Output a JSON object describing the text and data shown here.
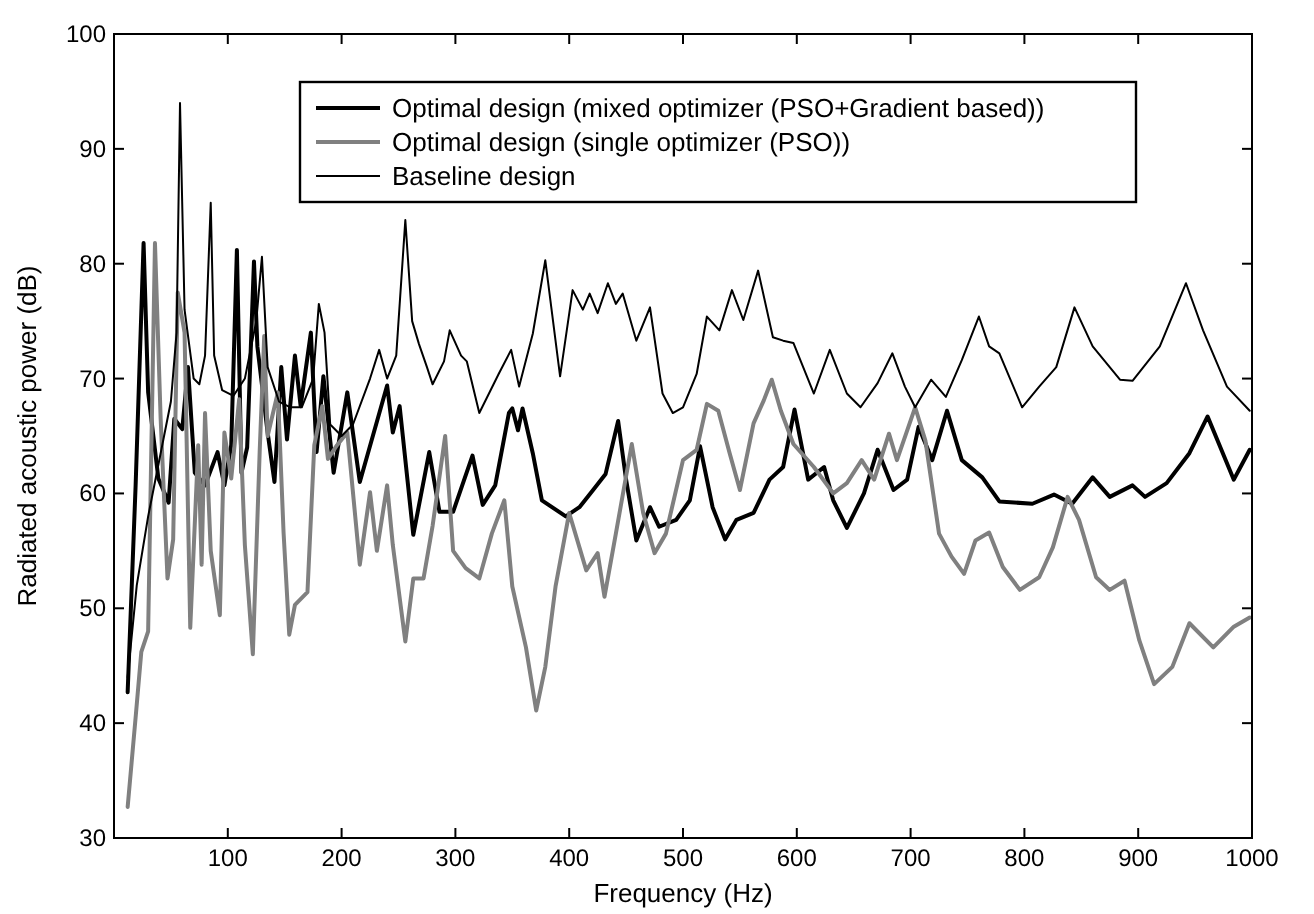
{
  "chart_data": {
    "type": "line",
    "xlabel": "Frequency (Hz)",
    "ylabel": "Radiated acoustic power (dB)",
    "xlim": [
      0,
      1000
    ],
    "ylim": [
      30,
      100
    ],
    "xticks": [
      100,
      200,
      300,
      400,
      500,
      600,
      700,
      800,
      900,
      1000
    ],
    "yticks": [
      30,
      40,
      50,
      60,
      70,
      80,
      90,
      100
    ],
    "grid": false,
    "legend": "top",
    "marker": "none",
    "line_style": "solid",
    "series": [
      {
        "name": "Optimal design (mixed optimizer (PSO+Gradient based))",
        "color": "#000000",
        "x": [
          12,
          19,
          26,
          30,
          39,
          48,
          53,
          60,
          65,
          71,
          80,
          91,
          97,
          103,
          108,
          112,
          117,
          123,
          126,
          135,
          141,
          147,
          152,
          159,
          164,
          173,
          178,
          184,
          193,
          205,
          216,
          240,
          245,
          251,
          263,
          277,
          286,
          298,
          315,
          324,
          335,
          347,
          350,
          355,
          359,
          368,
          376,
          397,
          409,
          421,
          432,
          443,
          450,
          459,
          471,
          479,
          494,
          506,
          515,
          526,
          537,
          547,
          562,
          576,
          588,
          598,
          610,
          624,
          632,
          644,
          659,
          671,
          685,
          697,
          707,
          719,
          732,
          745,
          763,
          778,
          807,
          826,
          842,
          860,
          875,
          895,
          906,
          925,
          945,
          961,
          984,
          998
        ],
        "values": [
          42.7,
          60.7,
          81.8,
          68.8,
          61.3,
          59.2,
          66.5,
          65.6,
          71,
          61.8,
          60.7,
          63.6,
          60.7,
          64.2,
          81.2,
          61.8,
          64,
          80.2,
          72.8,
          65.3,
          61,
          71,
          64.7,
          72,
          67.6,
          74,
          63.6,
          70.2,
          61.8,
          68.8,
          61,
          69.4,
          65.3,
          67.6,
          56.4,
          63.6,
          58.4,
          58.4,
          63.3,
          59,
          60.7,
          67,
          67.4,
          65.5,
          67.4,
          63.5,
          59.4,
          58,
          58.8,
          60.3,
          61.7,
          66.3,
          61.2,
          55.9,
          58.8,
          57.1,
          57.7,
          59.4,
          64.1,
          58.8,
          56,
          57.7,
          58.3,
          61.2,
          62.3,
          67.3,
          61.2,
          62.3,
          59.4,
          57,
          60,
          63.8,
          60.3,
          61.2,
          65.8,
          62.9,
          67.2,
          62.9,
          61.4,
          59.3,
          59.1,
          59.9,
          59.1,
          61.4,
          59.7,
          60.7,
          59.7,
          60.9,
          63.5,
          66.7,
          61.2,
          63.8
        ]
      },
      {
        "name": "Optimal design (single optimizer (PSO))",
        "color": "#808080",
        "x": [
          12,
          19,
          24,
          30,
          36,
          41,
          47,
          52,
          56,
          62,
          67,
          74,
          77,
          80,
          85,
          93,
          97,
          103,
          110,
          115,
          122,
          128,
          132,
          135,
          144,
          149,
          154,
          159,
          170,
          176,
          183,
          188,
          196,
          205,
          216,
          225,
          231,
          240,
          245,
          256,
          263,
          272,
          280,
          291,
          298,
          309,
          321,
          332,
          343,
          350,
          362,
          371,
          379,
          388,
          400,
          409,
          415,
          425,
          431,
          441,
          455,
          465,
          475,
          485,
          500,
          512,
          521,
          531,
          541,
          550,
          562,
          571,
          578,
          586,
          597,
          615,
          632,
          644,
          657,
          668,
          681,
          688,
          704,
          713,
          725,
          736,
          747,
          757,
          769,
          781,
          796,
          813,
          825,
          838,
          848,
          863,
          875,
          888,
          901,
          914,
          930,
          945,
          966,
          984,
          998
        ],
        "values": [
          32.7,
          40.5,
          46.2,
          48,
          81.8,
          66.5,
          52.6,
          56,
          77.5,
          74,
          48.3,
          64.2,
          53.8,
          67,
          55,
          49.4,
          65.3,
          61.3,
          68.2,
          55.5,
          46,
          63.6,
          73.7,
          65,
          68.8,
          56.6,
          47.7,
          50.3,
          51.4,
          64.2,
          67.6,
          63,
          64.2,
          65.3,
          53.8,
          60.1,
          55,
          60.7,
          55.5,
          47.1,
          52.6,
          52.6,
          57.2,
          65,
          55,
          53.5,
          52.6,
          56.5,
          59.4,
          51.9,
          46.6,
          41.1,
          44.9,
          51.9,
          58.3,
          55.3,
          53.3,
          54.8,
          51,
          56.5,
          64.3,
          58.3,
          54.8,
          56.5,
          62.9,
          63.8,
          67.8,
          67.2,
          63.5,
          60.3,
          66.1,
          68.1,
          69.9,
          67.2,
          64.3,
          62.3,
          60,
          60.9,
          62.9,
          61.2,
          65.2,
          62.9,
          67.5,
          64.6,
          56.5,
          54.5,
          53,
          55.9,
          56.6,
          53.6,
          51.6,
          52.7,
          55.3,
          59.7,
          57.7,
          52.7,
          51.6,
          52.4,
          47.2,
          43.4,
          44.9,
          48.7,
          46.6,
          48.4,
          49.2
        ]
      },
      {
        "name": "Baseline design",
        "color": "#000000",
        "x": [
          12,
          20,
          30,
          40,
          50,
          55,
          58,
          62,
          70,
          75,
          80,
          85,
          88,
          95,
          105,
          115,
          125,
          130,
          135,
          145,
          155,
          165,
          175,
          180,
          185,
          190,
          200,
          210,
          225,
          233,
          240,
          248,
          256,
          262,
          268,
          275,
          280,
          290,
          295,
          305,
          310,
          321,
          338,
          349,
          356,
          368,
          379,
          392,
          403,
          412,
          418,
          425,
          434,
          441,
          447,
          459,
          471,
          482,
          491,
          500,
          512,
          521,
          532,
          543,
          553,
          566,
          579,
          588,
          597,
          615,
          629,
          644,
          656,
          671,
          684,
          695,
          704,
          718,
          731,
          745,
          760,
          769,
          778,
          798,
          813,
          828,
          844,
          860,
          884,
          895,
          919,
          942,
          957,
          978,
          998
        ],
        "values": [
          44,
          52,
          58,
          63,
          68,
          74,
          94,
          76,
          70,
          69.5,
          72,
          85.3,
          72,
          69,
          68.5,
          70,
          75,
          80.6,
          71,
          68,
          67.5,
          67.5,
          70,
          76.5,
          74,
          66,
          65,
          66,
          70,
          72.5,
          70,
          72,
          83.8,
          75,
          73,
          71,
          69.5,
          71.5,
          74.2,
          72,
          71.5,
          67,
          70.4,
          72.5,
          69.3,
          73.9,
          80.3,
          70.2,
          77.7,
          76,
          77.4,
          75.7,
          78.3,
          76.5,
          77.4,
          73.3,
          76.2,
          68.7,
          67,
          67.5,
          70.4,
          75.4,
          74.2,
          77.7,
          75.1,
          79.4,
          73.6,
          73.3,
          73.1,
          68.7,
          72.5,
          68.7,
          67.5,
          69.6,
          72.2,
          69.3,
          67.5,
          69.9,
          68.4,
          71.6,
          75.4,
          72.8,
          72.2,
          67.5,
          69.3,
          71,
          76.2,
          72.8,
          69.9,
          69.8,
          72.8,
          78.3,
          74.2,
          69.3,
          67.2
        ]
      }
    ]
  }
}
